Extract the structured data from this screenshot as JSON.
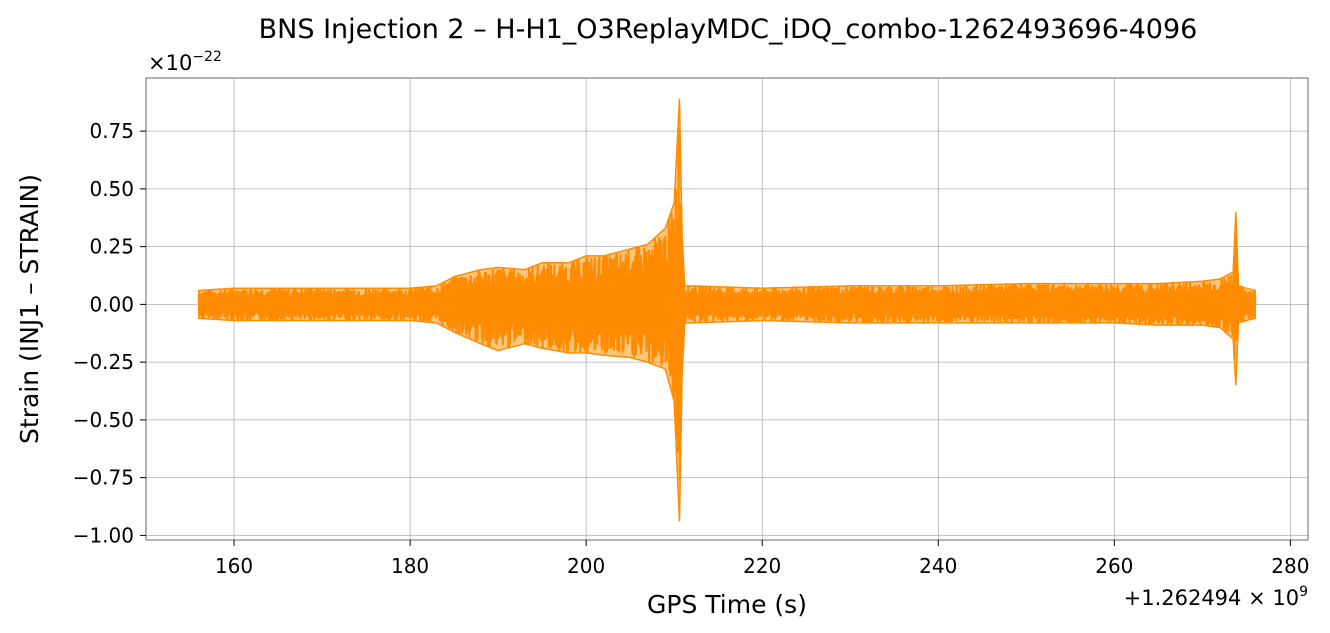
{
  "chart_data": {
    "type": "line",
    "title": "BNS Injection 2 – H-H1_O3ReplayMDC_iDQ_combo-1262493696-4096",
    "xlabel": "GPS Time (s)",
    "ylabel": "Strain (INJ1 – STRAIN)",
    "x_offset_text": {
      "prefix": "+1.262494 × 10",
      "exponent": "9"
    },
    "y_scale_text": {
      "prefix": "×10",
      "exponent": "−22"
    },
    "xlim": [
      150,
      282
    ],
    "ylim": [
      -1.02,
      0.98
    ],
    "x_ticks": [
      160,
      180,
      200,
      220,
      240,
      260,
      280
    ],
    "x_tick_labels": [
      "160",
      "180",
      "200",
      "220",
      "240",
      "260",
      "280"
    ],
    "y_ticks": [
      0.75,
      0.5,
      0.25,
      0.0,
      -0.25,
      -0.5,
      -0.75,
      -1.0
    ],
    "y_tick_labels": [
      "0.75",
      "0.50",
      "0.25",
      "0.00",
      "−0.25",
      "−0.50",
      "−0.75",
      "−1.00"
    ],
    "grid": true,
    "series": [
      {
        "color": "#ff8c00",
        "envelope": {
          "x": [
            156,
            160,
            170,
            180,
            183,
            185,
            188,
            190,
            193,
            195,
            198,
            200,
            202,
            205,
            207,
            209,
            210,
            210.6,
            210.9,
            211.2,
            212,
            220,
            230,
            240,
            250,
            260,
            265,
            270,
            272,
            273.5,
            273.8,
            274.1,
            275,
            276
          ],
          "upper": [
            0.06,
            0.07,
            0.07,
            0.07,
            0.08,
            0.12,
            0.15,
            0.16,
            0.15,
            0.18,
            0.18,
            0.21,
            0.21,
            0.24,
            0.26,
            0.33,
            0.44,
            0.89,
            0.3,
            0.08,
            0.08,
            0.07,
            0.08,
            0.08,
            0.09,
            0.09,
            0.09,
            0.1,
            0.11,
            0.14,
            0.4,
            0.08,
            0.07,
            0.06
          ],
          "lower": [
            -0.06,
            -0.07,
            -0.07,
            -0.07,
            -0.08,
            -0.12,
            -0.17,
            -0.2,
            -0.17,
            -0.19,
            -0.21,
            -0.21,
            -0.22,
            -0.23,
            -0.25,
            -0.28,
            -0.42,
            -0.94,
            -0.3,
            -0.08,
            -0.08,
            -0.07,
            -0.08,
            -0.08,
            -0.08,
            -0.08,
            -0.09,
            -0.09,
            -0.1,
            -0.15,
            -0.35,
            -0.08,
            -0.07,
            -0.06
          ]
        }
      }
    ]
  }
}
